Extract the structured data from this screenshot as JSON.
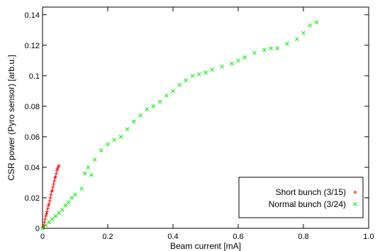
{
  "chart_data": {
    "type": "scatter",
    "xlabel": "Beam current [mA]",
    "ylabel": "CSR power (Pyro sensor) [arb.u.]",
    "xlim": [
      0,
      1.0
    ],
    "ylim": [
      0,
      0.145
    ],
    "xticks": [
      0,
      0.2,
      0.4,
      0.6,
      0.8,
      1.0
    ],
    "xtick_labels": [
      "0",
      "0.2",
      "0.4",
      "0.6",
      "0.8",
      "1.0"
    ],
    "yticks": [
      0,
      0.02,
      0.04,
      0.06,
      0.08,
      0.1,
      0.12,
      0.14
    ],
    "ytick_labels": [
      "0",
      "0.02",
      "0.04",
      "0.06",
      "0.08",
      "0.1",
      "0.12",
      "0.14"
    ],
    "grid": false,
    "legend_position": "bottom-right",
    "series": [
      {
        "name": "Short bunch (3/15)",
        "marker": "+",
        "color": "#ff0000",
        "x": [
          0.002,
          0.004,
          0.006,
          0.008,
          0.01,
          0.012,
          0.014,
          0.016,
          0.018,
          0.02,
          0.022,
          0.024,
          0.026,
          0.028,
          0.03,
          0.032,
          0.034,
          0.036,
          0.038,
          0.04,
          0.042,
          0.044,
          0.046,
          0.048,
          0.05
        ],
        "y": [
          0.0005,
          0.002,
          0.004,
          0.006,
          0.008,
          0.0095,
          0.011,
          0.013,
          0.015,
          0.016,
          0.018,
          0.02,
          0.022,
          0.024,
          0.025,
          0.027,
          0.029,
          0.031,
          0.033,
          0.034,
          0.036,
          0.038,
          0.039,
          0.04,
          0.041
        ]
      },
      {
        "name": "Normal bunch (3/24)",
        "marker": "x",
        "color": "#00ee00",
        "x": [
          0.0,
          0.01,
          0.02,
          0.03,
          0.04,
          0.05,
          0.06,
          0.07,
          0.08,
          0.09,
          0.1,
          0.12,
          0.13,
          0.14,
          0.15,
          0.16,
          0.18,
          0.2,
          0.22,
          0.24,
          0.26,
          0.28,
          0.3,
          0.32,
          0.34,
          0.36,
          0.38,
          0.4,
          0.42,
          0.44,
          0.46,
          0.48,
          0.5,
          0.52,
          0.55,
          0.58,
          0.6,
          0.62,
          0.65,
          0.68,
          0.7,
          0.72,
          0.75,
          0.78,
          0.8,
          0.82,
          0.84
        ],
        "y": [
          0.0,
          0.002,
          0.004,
          0.006,
          0.008,
          0.01,
          0.012,
          0.015,
          0.017,
          0.02,
          0.022,
          0.026,
          0.036,
          0.04,
          0.035,
          0.045,
          0.051,
          0.055,
          0.058,
          0.06,
          0.065,
          0.07,
          0.074,
          0.078,
          0.08,
          0.083,
          0.087,
          0.09,
          0.094,
          0.097,
          0.1,
          0.101,
          0.102,
          0.104,
          0.106,
          0.108,
          0.11,
          0.112,
          0.115,
          0.117,
          0.118,
          0.118,
          0.121,
          0.124,
          0.128,
          0.133,
          0.135
        ]
      }
    ]
  }
}
